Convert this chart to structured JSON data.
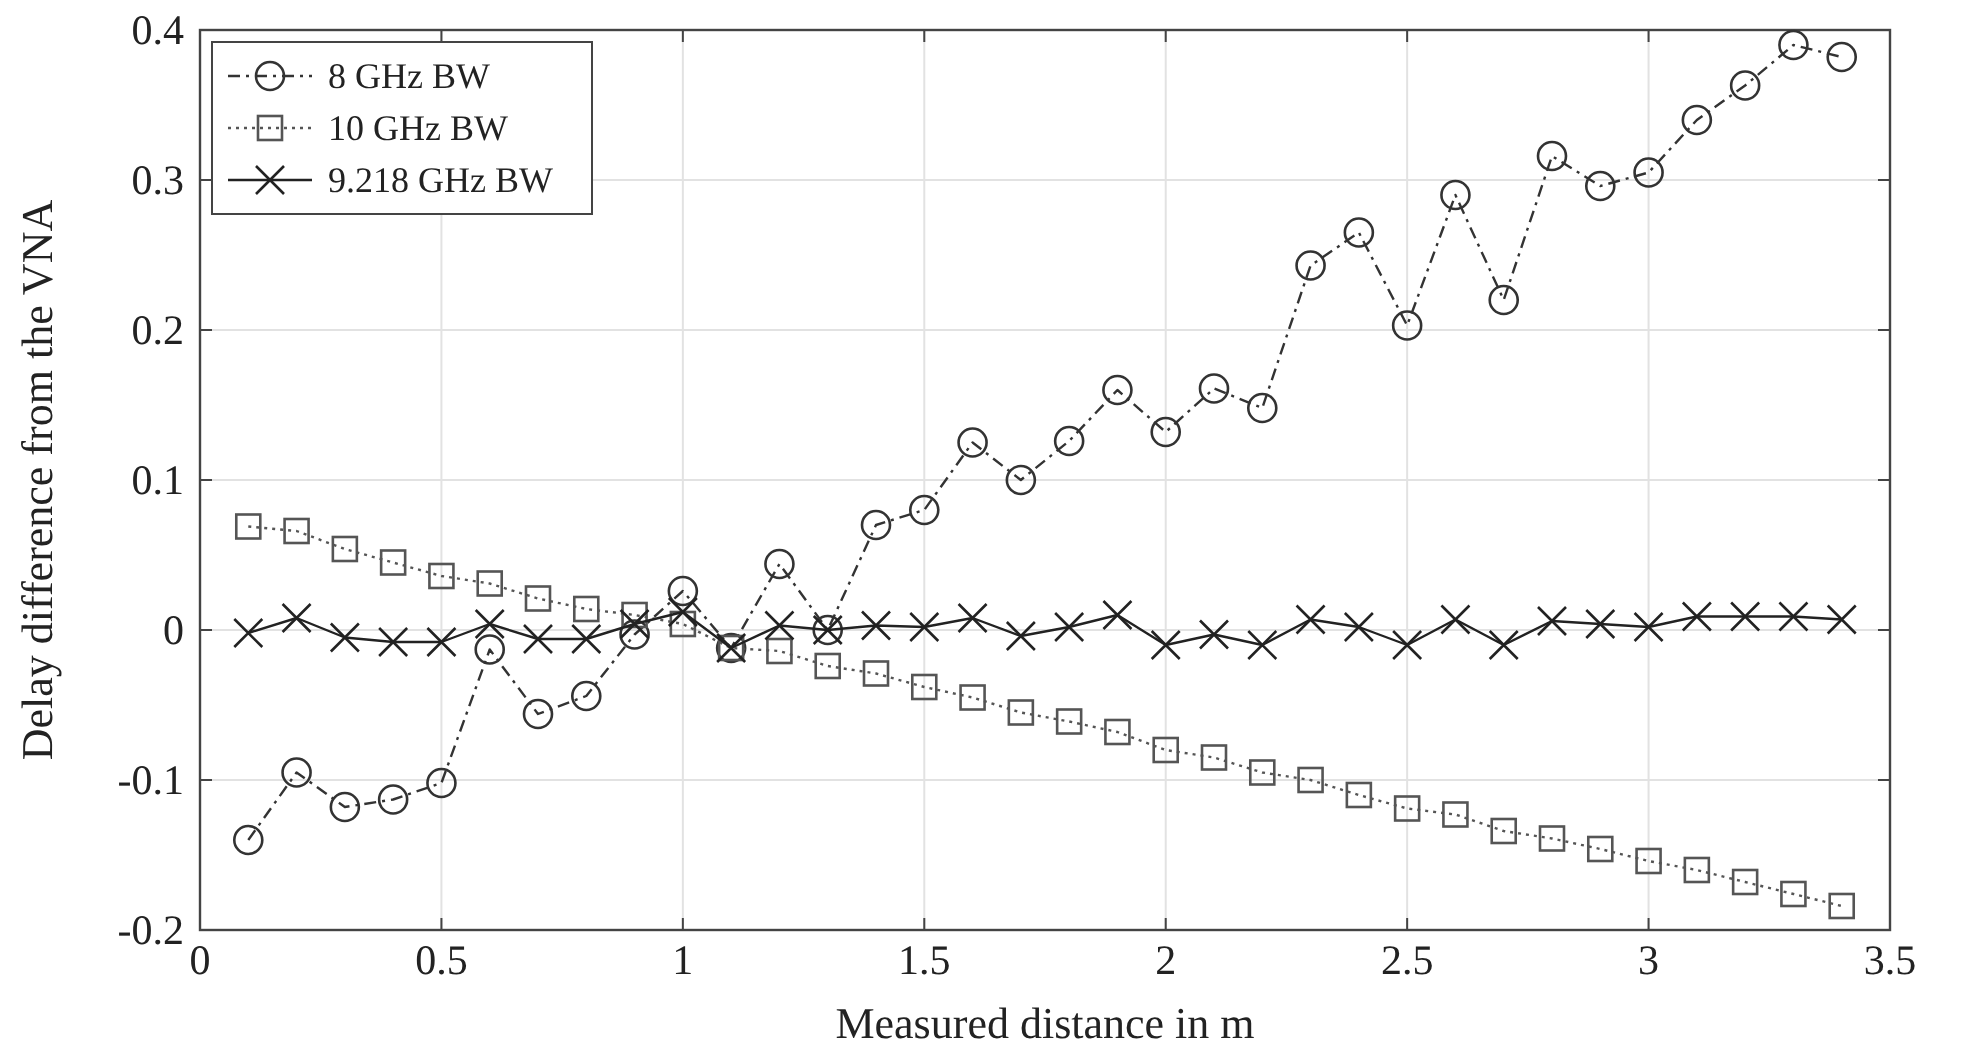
{
  "chart_data": {
    "type": "line",
    "xlabel": "Measured distance in m",
    "ylabel": "Delay difference from the VNA",
    "x": [
      0.1,
      0.2,
      0.3,
      0.4,
      0.5,
      0.6,
      0.7,
      0.8,
      0.9,
      1.0,
      1.1,
      1.2,
      1.3,
      1.4,
      1.5,
      1.6,
      1.7,
      1.8,
      1.9,
      2.0,
      2.1,
      2.2,
      2.3,
      2.4,
      2.5,
      2.6,
      2.7,
      2.8,
      2.9,
      3.0,
      3.1,
      3.2,
      3.3,
      3.4
    ],
    "xlim": [
      0,
      3.5
    ],
    "xticks": [
      0,
      0.5,
      1,
      1.5,
      2,
      2.5,
      3,
      3.5
    ],
    "ylim": [
      -0.2,
      0.4
    ],
    "yticks": [
      -0.2,
      -0.1,
      0,
      0.1,
      0.2,
      0.3,
      0.4
    ],
    "grid": true,
    "legend": "top left",
    "series": [
      {
        "name": "8 GHz BW",
        "color": "#333333",
        "marker": "circle",
        "line_style": "dashdot",
        "values": [
          -0.14,
          -0.095,
          -0.118,
          -0.113,
          -0.102,
          -0.013,
          -0.056,
          -0.044,
          -0.003,
          0.026,
          -0.012,
          0.044,
          0.0,
          0.07,
          0.08,
          0.125,
          0.1,
          0.126,
          0.16,
          0.132,
          0.161,
          0.148,
          0.243,
          0.265,
          0.203,
          0.29,
          0.22,
          0.316,
          0.296,
          0.305,
          0.34,
          0.363,
          0.39,
          0.382
        ]
      },
      {
        "name": "10 GHz BW",
        "color": "#555555",
        "marker": "square",
        "line_style": "dotted",
        "values": [
          0.069,
          0.066,
          0.054,
          0.045,
          0.036,
          0.031,
          0.021,
          0.014,
          0.01,
          0.004,
          -0.012,
          -0.014,
          -0.024,
          -0.029,
          -0.038,
          -0.045,
          -0.055,
          -0.061,
          -0.068,
          -0.08,
          -0.085,
          -0.095,
          -0.1,
          -0.11,
          -0.119,
          -0.123,
          -0.134,
          -0.139,
          -0.146,
          -0.154,
          -0.16,
          -0.168,
          -0.176,
          -0.184
        ]
      },
      {
        "name": "9.218 GHz BW",
        "color": "#222222",
        "marker": "cross",
        "line_style": "solid",
        "values": [
          -0.002,
          0.008,
          -0.005,
          -0.008,
          -0.008,
          0.004,
          -0.006,
          -0.006,
          0.004,
          0.012,
          -0.012,
          0.003,
          0.0,
          0.003,
          0.002,
          0.008,
          -0.004,
          0.002,
          0.01,
          -0.01,
          -0.003,
          -0.01,
          0.007,
          0.002,
          -0.01,
          0.007,
          -0.01,
          0.006,
          0.004,
          0.002,
          0.009,
          0.009,
          0.009,
          0.007
        ]
      }
    ]
  }
}
